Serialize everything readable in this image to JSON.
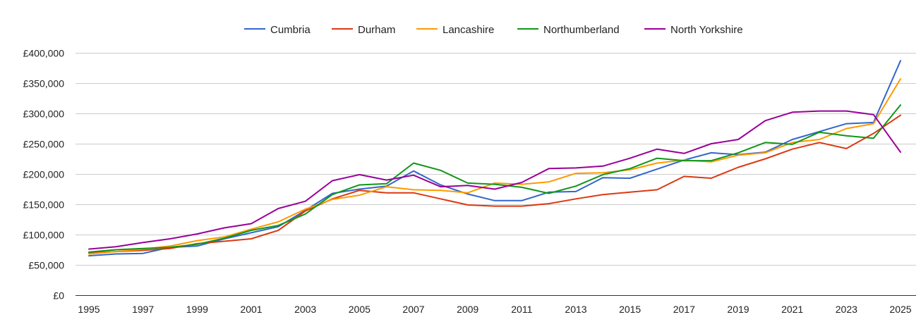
{
  "chart_data": {
    "type": "line",
    "title": "",
    "xlabel": "",
    "ylabel": "",
    "x": [
      1995,
      1996,
      1997,
      1998,
      1999,
      2000,
      2001,
      2002,
      2003,
      2004,
      2005,
      2006,
      2007,
      2008,
      2009,
      2010,
      2011,
      2012,
      2013,
      2014,
      2015,
      2016,
      2017,
      2018,
      2019,
      2020,
      2021,
      2022,
      2023,
      2024,
      2025
    ],
    "xticks": [
      "1995",
      "1997",
      "1999",
      "2001",
      "2003",
      "2005",
      "2007",
      "2009",
      "2011",
      "2013",
      "2015",
      "2017",
      "2019",
      "2021",
      "2023",
      "2025"
    ],
    "xlim": [
      1995,
      2025
    ],
    "ylim": [
      0,
      400000
    ],
    "yticks": [
      0,
      50000,
      100000,
      150000,
      200000,
      250000,
      300000,
      350000,
      400000
    ],
    "ytick_labels": [
      "£0",
      "£50,000",
      "£100,000",
      "£150,000",
      "£200,000",
      "£250,000",
      "£300,000",
      "£350,000",
      "£400,000"
    ],
    "grid": true,
    "legend_position": "top-center",
    "series": [
      {
        "name": "Cumbria",
        "color": "#3366cc",
        "values": [
          65000,
          68000,
          69000,
          79000,
          81000,
          93000,
          103000,
          113000,
          140000,
          168000,
          175000,
          180000,
          205000,
          182000,
          167000,
          156000,
          156000,
          170000,
          171000,
          194000,
          193000,
          208000,
          223000,
          235000,
          232000,
          236000,
          257000,
          270000,
          283000,
          285000,
          387000
        ]
      },
      {
        "name": "Durham",
        "color": "#dc3912",
        "values": [
          70000,
          72000,
          74000,
          77000,
          85000,
          89000,
          93000,
          107000,
          139000,
          159000,
          173000,
          169000,
          169000,
          159000,
          149000,
          147000,
          147000,
          151000,
          159000,
          166000,
          170000,
          174000,
          196000,
          193000,
          211000,
          225000,
          241000,
          252000,
          242000,
          267000,
          297000
        ]
      },
      {
        "name": "Lancashire",
        "color": "#ff9900",
        "values": [
          68000,
          72000,
          76000,
          81000,
          90000,
          96000,
          109000,
          121000,
          142000,
          158000,
          165000,
          179000,
          174000,
          173000,
          169000,
          185000,
          183000,
          187000,
          201000,
          202000,
          207000,
          218000,
          223000,
          220000,
          231000,
          235000,
          252000,
          257000,
          275000,
          283000,
          357000
        ]
      },
      {
        "name": "Northumberland",
        "color": "#109618",
        "values": [
          71000,
          75000,
          77000,
          79000,
          84000,
          94000,
          107000,
          115000,
          134000,
          166000,
          182000,
          184000,
          218000,
          206000,
          185000,
          183000,
          178000,
          168000,
          180000,
          199000,
          209000,
          226000,
          222000,
          222000,
          235000,
          252000,
          249000,
          269000,
          263000,
          259000,
          314000
        ]
      },
      {
        "name": "North Yorkshire",
        "color": "#990099",
        "values": [
          76000,
          80000,
          87000,
          93000,
          101000,
          111000,
          118000,
          143000,
          155000,
          189000,
          199000,
          190000,
          198000,
          179000,
          181000,
          175000,
          186000,
          209000,
          210000,
          213000,
          226000,
          241000,
          234000,
          250000,
          257000,
          288000,
          302000,
          304000,
          304000,
          298000,
          236000
        ]
      }
    ]
  }
}
